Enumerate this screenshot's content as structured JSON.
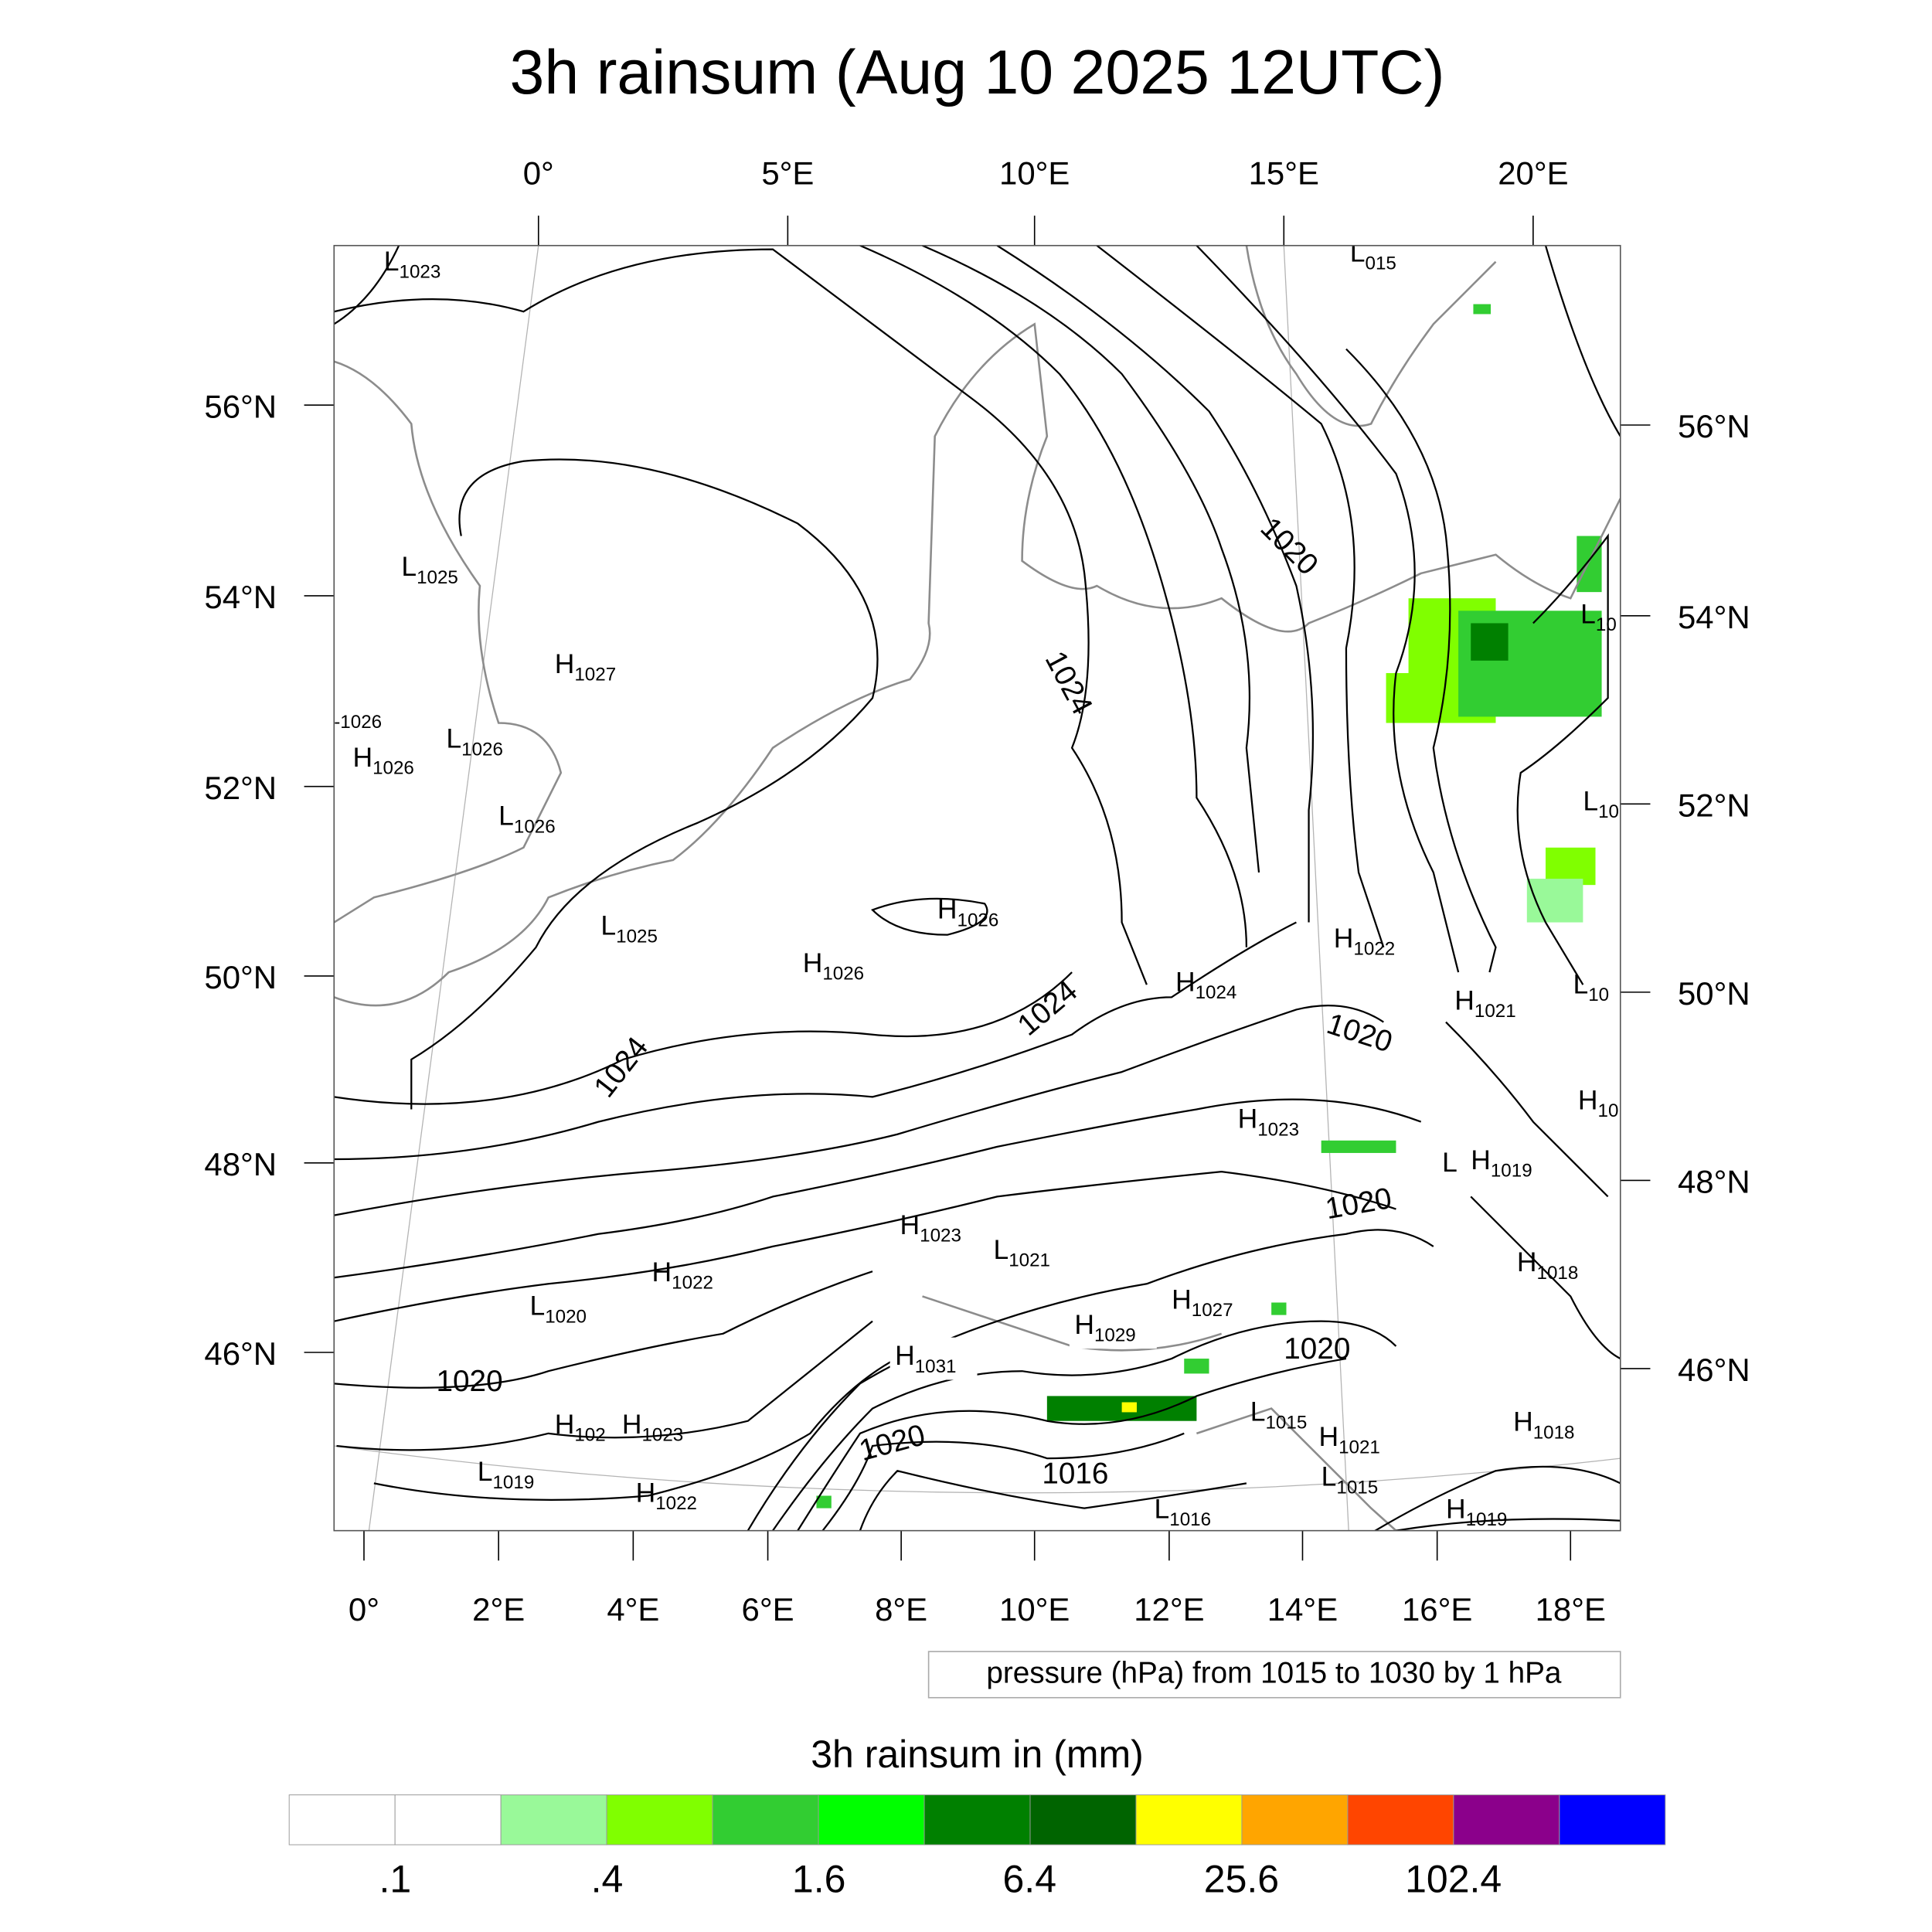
{
  "title": "3h rainsum (Aug 10 2025 12UTC)",
  "top_lon_labels": [
    "0°",
    "5°E",
    "10°E",
    "15°E",
    "20°E"
  ],
  "left_lat_labels": [
    "56°N",
    "54°N",
    "52°N",
    "50°N",
    "48°N",
    "46°N"
  ],
  "right_lat_labels": [
    "56°N",
    "54°N",
    "52°N",
    "50°N",
    "48°N",
    "46°N"
  ],
  "bottom_lon_labels": [
    "0°",
    "2°E",
    "4°E",
    "6°E",
    "8°E",
    "10°E",
    "12°E",
    "14°E",
    "16°E",
    "18°E"
  ],
  "pressure_centers": [
    {
      "letter": "L",
      "value": "1023"
    },
    {
      "letter": "L",
      "value": "015"
    },
    {
      "letter": "L",
      "value": "1025"
    },
    {
      "letter": "H",
      "value": "1027"
    },
    {
      "letter": "",
      "value": "-1026"
    },
    {
      "letter": "H",
      "value": "1026"
    },
    {
      "letter": "L",
      "value": "1026"
    },
    {
      "letter": "L",
      "value": "1026"
    },
    {
      "letter": "H",
      "value": "1026"
    },
    {
      "letter": "L",
      "value": "1025"
    },
    {
      "letter": "H",
      "value": "1026"
    },
    {
      "letter": "H",
      "value": "1024"
    },
    {
      "letter": "H",
      "value": "1022"
    },
    {
      "letter": "H",
      "value": "1021"
    },
    {
      "letter": "L",
      "value": "10"
    },
    {
      "letter": "L",
      "value": "10"
    },
    {
      "letter": "L",
      "value": "10"
    },
    {
      "letter": "H",
      "value": "10"
    },
    {
      "letter": "H",
      "value": "1023"
    },
    {
      "letter": "L",
      "value": ""
    },
    {
      "letter": "H",
      "value": "1019"
    },
    {
      "letter": "H",
      "value": "1018"
    },
    {
      "letter": "H",
      "value": "1023"
    },
    {
      "letter": "L",
      "value": "1021"
    },
    {
      "letter": "H",
      "value": "1022"
    },
    {
      "letter": "L",
      "value": "1020"
    },
    {
      "letter": "H",
      "value": "1027"
    },
    {
      "letter": "H",
      "value": "1029"
    },
    {
      "letter": "H",
      "value": "1031"
    },
    {
      "letter": "H",
      "value": "102"
    },
    {
      "letter": "H",
      "value": "1023"
    },
    {
      "letter": "L",
      "value": "1019"
    },
    {
      "letter": "H",
      "value": "1022"
    },
    {
      "letter": "L",
      "value": "1015"
    },
    {
      "letter": "H",
      "value": "1021"
    },
    {
      "letter": "L",
      "value": "1015"
    },
    {
      "letter": "L",
      "value": "1016"
    },
    {
      "letter": "H",
      "value": "1018"
    },
    {
      "letter": "H",
      "value": "1019"
    }
  ],
  "isobar_labels": [
    "1020",
    "1024",
    "1024",
    "1024",
    "1020",
    "1020",
    "1020",
    "1020",
    "1020",
    "1016"
  ],
  "legend_text": "pressure (hPa) from 1015 to 1030 by 1 hPa",
  "colorbar": {
    "title": "3h rainsum in (mm)",
    "colors": [
      "#ffffff",
      "#ffffff",
      "#99f999",
      "#80ff00",
      "#32cd32",
      "#00ff00",
      "#008000",
      "#006400",
      "#ffff00",
      "#ffa500",
      "#ff4500",
      "#8b008b",
      "#0000ff"
    ],
    "labels": [
      ".1",
      ".4",
      "1.6",
      "6.4",
      "25.6",
      "102.4"
    ]
  }
}
